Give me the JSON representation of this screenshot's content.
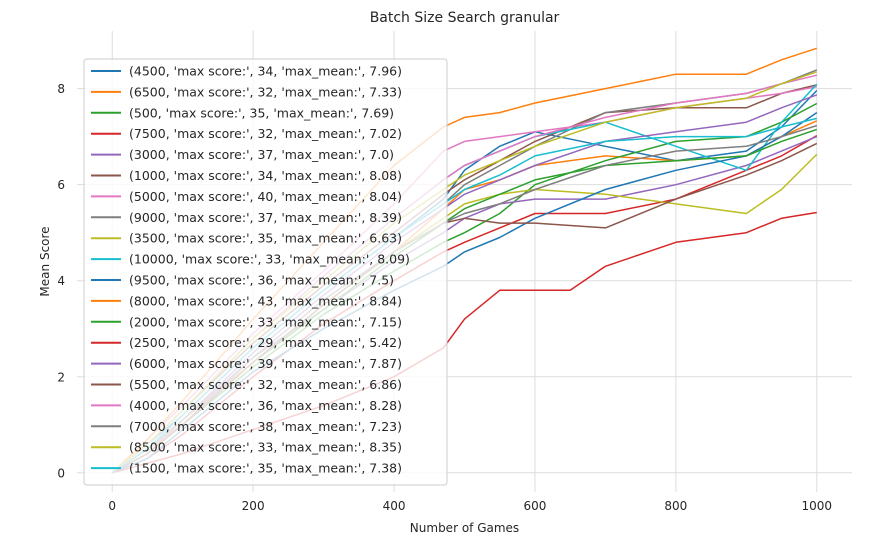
{
  "chart_data": {
    "type": "line",
    "title": "Batch Size Search granular",
    "xlabel": "Number of Games",
    "ylabel": "Mean Score",
    "xlim": [
      -50,
      1050
    ],
    "ylim": [
      -0.4,
      9.2
    ],
    "xticks": [
      0,
      200,
      400,
      600,
      800,
      1000
    ],
    "yticks": [
      0,
      2,
      4,
      6,
      8
    ],
    "grid": true,
    "legend_position": "upper-left",
    "series": [
      {
        "name": "(4500, 'max score:', 34, 'max_mean:', 7.96)",
        "color": "#1f77b4",
        "x": [
          0,
          50,
          100,
          200,
          300,
          400,
          470,
          500,
          550,
          600,
          700,
          800,
          900,
          950,
          1000
        ],
        "y": [
          0,
          0.6,
          1.2,
          2.6,
          3.8,
          4.9,
          5.7,
          6.3,
          6.8,
          7.1,
          6.8,
          6.5,
          6.7,
          7.2,
          7.96
        ]
      },
      {
        "name": "(6500, 'max score:', 32, 'max_mean:', 7.33)",
        "color": "#ff7f0e",
        "x": [
          0,
          50,
          100,
          200,
          300,
          400,
          470,
          500,
          550,
          600,
          700,
          800,
          900,
          950,
          1000
        ],
        "y": [
          0,
          0.4,
          1.1,
          2.3,
          3.5,
          4.6,
          5.5,
          5.9,
          6.1,
          6.4,
          6.6,
          6.5,
          6.6,
          7.0,
          7.33
        ]
      },
      {
        "name": "(500, 'max score:', 35, 'max_mean:', 7.69)",
        "color": "#2ca02c",
        "x": [
          0,
          50,
          100,
          200,
          300,
          400,
          470,
          500,
          550,
          600,
          700,
          800,
          900,
          950,
          1000
        ],
        "y": [
          0,
          0.5,
          1.0,
          2.2,
          3.3,
          4.2,
          4.8,
          5.0,
          5.4,
          6.0,
          6.5,
          6.9,
          7.0,
          7.3,
          7.69
        ]
      },
      {
        "name": "(7500, 'max score:', 32, 'max_mean:', 7.02)",
        "color": "#d62728",
        "x": [
          0,
          50,
          100,
          200,
          300,
          400,
          470,
          500,
          550,
          600,
          700,
          800,
          900,
          950,
          1000
        ],
        "y": [
          0,
          0.3,
          0.8,
          2.0,
          3.1,
          4.0,
          4.6,
          4.8,
          5.1,
          5.4,
          5.4,
          5.7,
          6.3,
          6.6,
          7.02
        ]
      },
      {
        "name": "(3000, 'max score:', 37, 'max_mean:', 7.0)",
        "color": "#9467bd",
        "x": [
          0,
          50,
          100,
          200,
          300,
          400,
          470,
          500,
          550,
          600,
          700,
          800,
          900,
          950,
          1000
        ],
        "y": [
          0,
          0.5,
          1.0,
          2.4,
          3.4,
          4.4,
          5.0,
          5.3,
          5.6,
          5.7,
          5.7,
          6.0,
          6.4,
          6.7,
          7.0
        ]
      },
      {
        "name": "(1000, 'max score:', 34, 'max_mean:', 8.08)",
        "color": "#8c564b",
        "x": [
          0,
          50,
          100,
          200,
          300,
          400,
          470,
          500,
          550,
          600,
          700,
          800,
          900,
          950,
          1000
        ],
        "y": [
          0,
          0.6,
          1.3,
          2.7,
          3.9,
          5.0,
          5.8,
          6.1,
          6.5,
          6.9,
          7.5,
          7.6,
          7.6,
          7.9,
          8.08
        ]
      },
      {
        "name": "(5000, 'max score:', 40, 'max_mean:', 8.04)",
        "color": "#e377c2",
        "x": [
          0,
          50,
          100,
          200,
          300,
          400,
          470,
          500,
          550,
          600,
          700,
          800,
          900,
          950,
          1000
        ],
        "y": [
          0,
          0.7,
          1.4,
          2.9,
          4.2,
          5.6,
          6.7,
          6.9,
          7.0,
          7.1,
          7.3,
          7.6,
          7.8,
          7.9,
          8.04
        ]
      },
      {
        "name": "(9000, 'max score:', 37, 'max_mean:', 8.39)",
        "color": "#7f7f7f",
        "x": [
          0,
          50,
          100,
          200,
          300,
          400,
          470,
          500,
          550,
          600,
          700,
          800,
          900,
          950,
          1000
        ],
        "y": [
          0,
          0.5,
          1.2,
          2.6,
          3.8,
          4.9,
          5.6,
          6.0,
          6.4,
          6.8,
          7.5,
          7.7,
          7.9,
          8.1,
          8.39
        ]
      },
      {
        "name": "(3500, 'max score:', 35, 'max_mean:', 6.63)",
        "color": "#bcbd22",
        "x": [
          0,
          50,
          100,
          200,
          300,
          400,
          470,
          500,
          550,
          600,
          700,
          800,
          900,
          950,
          1000
        ],
        "y": [
          0,
          0.4,
          1.0,
          2.3,
          3.5,
          4.6,
          5.3,
          5.6,
          5.8,
          5.9,
          5.8,
          5.6,
          5.4,
          5.9,
          6.63
        ]
      },
      {
        "name": "(10000, 'max score:', 33, 'max_mean:', 8.09)",
        "color": "#17becf",
        "x": [
          0,
          50,
          100,
          200,
          300,
          400,
          470,
          500,
          550,
          600,
          700,
          800,
          900,
          950,
          1000
        ],
        "y": [
          0,
          0.6,
          1.3,
          2.8,
          4.1,
          5.3,
          6.1,
          6.4,
          6.7,
          7.0,
          7.3,
          6.8,
          6.3,
          7.3,
          8.09
        ]
      },
      {
        "name": "(9500, 'max score:', 36, 'max_mean:', 7.5)",
        "color": "#1f77b4",
        "x": [
          0,
          50,
          100,
          200,
          300,
          400,
          470,
          500,
          550,
          600,
          700,
          800,
          900,
          950,
          1000
        ],
        "y": [
          0,
          0.3,
          0.9,
          2.1,
          3.0,
          3.8,
          4.3,
          4.6,
          4.9,
          5.3,
          5.9,
          6.3,
          6.6,
          7.0,
          7.5
        ]
      },
      {
        "name": "(8000, 'max score:', 43, 'max_mean:', 8.84)",
        "color": "#ff7f0e",
        "x": [
          0,
          50,
          100,
          200,
          300,
          400,
          470,
          500,
          550,
          600,
          700,
          800,
          900,
          950,
          1000
        ],
        "y": [
          0,
          0.7,
          1.5,
          3.2,
          4.8,
          6.4,
          7.2,
          7.4,
          7.5,
          7.7,
          8.0,
          8.3,
          8.3,
          8.6,
          8.84
        ]
      },
      {
        "name": "(2000, 'max score:', 33, 'max_mean:', 7.15)",
        "color": "#2ca02c",
        "x": [
          0,
          50,
          100,
          200,
          300,
          400,
          470,
          500,
          550,
          600,
          700,
          800,
          900,
          950,
          1000
        ],
        "y": [
          0,
          0.4,
          1.0,
          2.3,
          3.4,
          4.5,
          5.2,
          5.5,
          5.8,
          6.1,
          6.4,
          6.5,
          6.6,
          6.9,
          7.15
        ]
      },
      {
        "name": "(2500, 'max score:', 29, 'max_mean:', 5.42)",
        "color": "#d62728",
        "x": [
          0,
          50,
          100,
          200,
          300,
          400,
          470,
          500,
          550,
          600,
          650,
          700,
          800,
          900,
          950,
          1000
        ],
        "y": [
          0,
          0.2,
          0.4,
          0.9,
          1.4,
          2.0,
          2.6,
          3.2,
          3.8,
          3.8,
          3.8,
          4.3,
          4.8,
          5.0,
          5.3,
          5.42
        ]
      },
      {
        "name": "(6000, 'max score:', 39, 'max_mean:', 7.87)",
        "color": "#9467bd",
        "x": [
          0,
          50,
          100,
          200,
          300,
          400,
          470,
          500,
          550,
          600,
          700,
          800,
          900,
          950,
          1000
        ],
        "y": [
          0,
          0.5,
          1.1,
          2.5,
          3.7,
          4.8,
          5.5,
          5.8,
          6.1,
          6.4,
          6.9,
          7.1,
          7.3,
          7.6,
          7.87
        ]
      },
      {
        "name": "(5500, 'max score:', 32, 'max_mean:', 6.86)",
        "color": "#8c564b",
        "x": [
          0,
          50,
          100,
          200,
          300,
          400,
          470,
          500,
          550,
          600,
          700,
          800,
          900,
          950,
          1000
        ],
        "y": [
          0,
          0.4,
          1.0,
          2.3,
          3.5,
          4.6,
          5.2,
          5.3,
          5.2,
          5.2,
          5.1,
          5.7,
          6.2,
          6.5,
          6.86
        ]
      },
      {
        "name": "(4000, 'max score:', 36, 'max_mean:', 8.28)",
        "color": "#e377c2",
        "x": [
          0,
          50,
          100,
          200,
          300,
          400,
          470,
          500,
          550,
          600,
          700,
          800,
          900,
          950,
          1000
        ],
        "y": [
          0,
          0.6,
          1.3,
          2.8,
          4.1,
          5.3,
          6.1,
          6.4,
          6.7,
          7.0,
          7.4,
          7.7,
          7.9,
          8.1,
          8.28
        ]
      },
      {
        "name": "(7000, 'max score:', 38, 'max_mean:', 7.23)",
        "color": "#7f7f7f",
        "x": [
          0,
          50,
          100,
          200,
          300,
          400,
          470,
          500,
          550,
          600,
          700,
          800,
          900,
          950,
          1000
        ],
        "y": [
          0,
          0.5,
          1.1,
          2.4,
          3.6,
          4.6,
          5.2,
          5.4,
          5.6,
          5.9,
          6.4,
          6.7,
          6.8,
          7.0,
          7.23
        ]
      },
      {
        "name": "(8500, 'max score:', 33, 'max_mean:', 8.35)",
        "color": "#bcbd22",
        "x": [
          0,
          50,
          100,
          200,
          300,
          400,
          470,
          500,
          550,
          600,
          700,
          800,
          900,
          950,
          1000
        ],
        "y": [
          0,
          0.6,
          1.3,
          2.8,
          4.0,
          5.2,
          5.9,
          6.2,
          6.5,
          6.8,
          7.3,
          7.6,
          7.8,
          8.1,
          8.35
        ]
      },
      {
        "name": "(1500, 'max score:', 35, 'max_mean:', 7.38)",
        "color": "#17becf",
        "x": [
          0,
          50,
          100,
          200,
          300,
          400,
          470,
          500,
          550,
          600,
          700,
          800,
          900,
          950,
          1000
        ],
        "y": [
          0,
          0.5,
          1.2,
          2.6,
          3.8,
          4.9,
          5.6,
          5.9,
          6.2,
          6.6,
          6.9,
          7.0,
          7.0,
          7.2,
          7.38
        ]
      }
    ]
  }
}
